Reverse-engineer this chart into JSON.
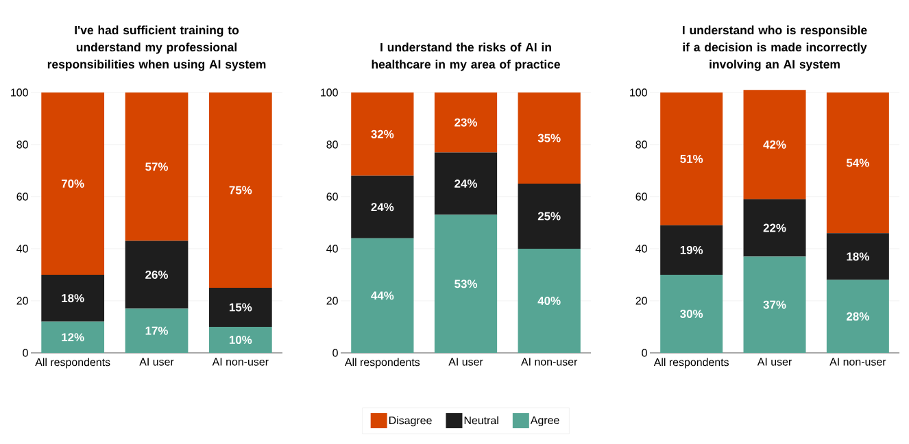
{
  "chart_data": [
    {
      "type": "bar",
      "stacked": true,
      "title": "I've had sufficient training to understand my professional responsibilities when using AI system",
      "categories": [
        "All respondents",
        "AI user",
        "AI non-user"
      ],
      "ylim": [
        0,
        100
      ],
      "yticks": [
        0,
        20,
        40,
        60,
        80,
        100
      ],
      "grid": "y",
      "series": [
        {
          "color": "#56a594",
          "values": [
            12,
            17,
            10
          ],
          "value_labels": [
            "12%",
            "17%",
            "10%"
          ]
        },
        {
          "color": "#1e1e1e",
          "values": [
            18,
            26,
            15
          ],
          "value_labels": [
            "18%",
            "26%",
            "15%"
          ]
        },
        {
          "color": "#d64500",
          "values": [
            70,
            57,
            75
          ],
          "value_labels": [
            "70%",
            "57%",
            "75%"
          ]
        }
      ]
    },
    {
      "type": "bar",
      "stacked": true,
      "title": "I understand the risks of AI in healthcare in my area of practice",
      "categories": [
        "All respondents",
        "AI user",
        "AI non-user"
      ],
      "ylim": [
        0,
        100
      ],
      "yticks": [
        0,
        20,
        40,
        60,
        80,
        100
      ],
      "grid": "y",
      "legend": "bottom",
      "series": [
        {
          "name": "Agree",
          "color": "#56a594",
          "values": [
            44,
            53,
            40
          ],
          "value_labels": [
            "44%",
            "53%",
            "40%"
          ]
        },
        {
          "name": "Neutral",
          "color": "#1e1e1e",
          "values": [
            24,
            24,
            25
          ],
          "value_labels": [
            "24%",
            "24%",
            "25%"
          ]
        },
        {
          "name": "Disagree",
          "color": "#d64500",
          "values": [
            32,
            23,
            35
          ],
          "value_labels": [
            "32%",
            "23%",
            "35%"
          ]
        }
      ]
    },
    {
      "type": "bar",
      "stacked": true,
      "title": "I understand who is responsible if a decision is made incorrectly involving an AI system",
      "categories": [
        "All respondents",
        "AI user",
        "AI non-user"
      ],
      "ylim": [
        0,
        101
      ],
      "yticks": [
        0,
        20,
        40,
        60,
        80,
        100
      ],
      "grid": "y",
      "series": [
        {
          "color": "#56a594",
          "values": [
            30,
            37,
            28
          ],
          "value_labels": [
            "30%",
            "37%",
            "28%"
          ]
        },
        {
          "color": "#1e1e1e",
          "values": [
            19,
            22,
            18
          ],
          "value_labels": [
            "19%",
            "22%",
            "18%"
          ]
        },
        {
          "color": "#d64500",
          "values": [
            51,
            42,
            54
          ],
          "value_labels": [
            "51%",
            "42%",
            "54%"
          ]
        }
      ]
    }
  ]
}
